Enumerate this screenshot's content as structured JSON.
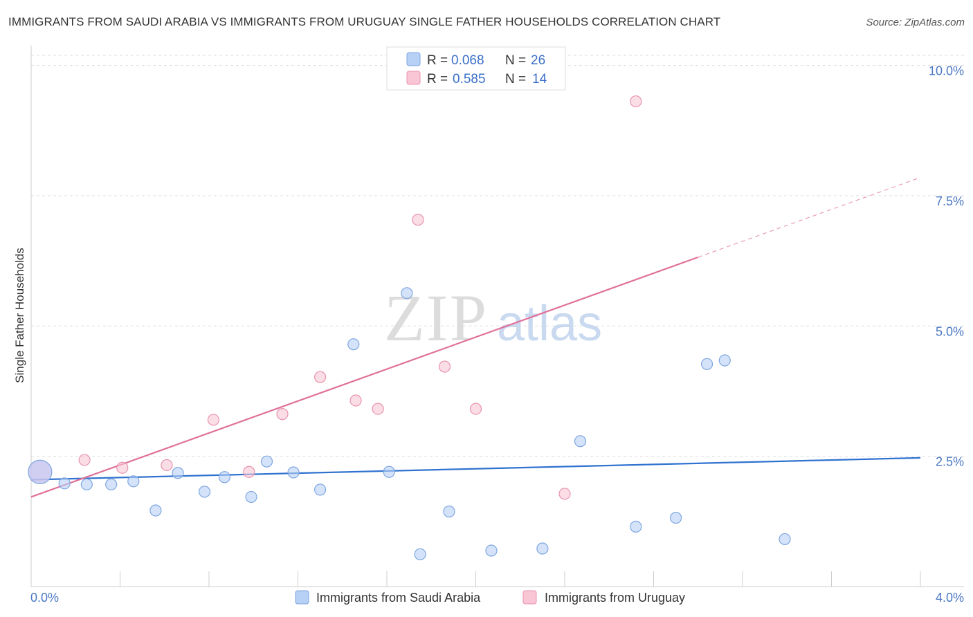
{
  "title": "IMMIGRANTS FROM SAUDI ARABIA VS IMMIGRANTS FROM URUGUAY SINGLE FATHER HOUSEHOLDS CORRELATION CHART",
  "source": "Source: ZipAtlas.com",
  "watermark": {
    "zip": "ZIP",
    "atlas": "atlas"
  },
  "legend_top": {
    "rows": [
      {
        "r_label": "R =",
        "r_value": "0.068",
        "n_label": "N =",
        "n_value": "26",
        "color": "#b7d0f5",
        "stroke": "#7ea6e0"
      },
      {
        "r_label": "R =",
        "r_value": "0.585",
        "n_label": "N =",
        "n_value": "14",
        "color": "#f9c6d6",
        "stroke": "#e893ae"
      }
    ]
  },
  "legend_bottom": [
    {
      "label": "Immigrants from Saudi Arabia",
      "color": "#b7d0f5",
      "stroke": "#7ea6e0"
    },
    {
      "label": "Immigrants from Uruguay",
      "color": "#f9c6d6",
      "stroke": "#e893ae"
    }
  ],
  "chart_data": {
    "type": "scatter",
    "xlabel": "",
    "ylabel": "Single Father Households",
    "xlim": [
      0,
      4
    ],
    "ylim": [
      0,
      10.3
    ],
    "x_tick_labels": [
      {
        "value": 0,
        "label": "0.0%"
      },
      {
        "value": 4,
        "label": "4.0%"
      }
    ],
    "y_tick_labels": [
      {
        "value": 2.5,
        "label": "2.5%"
      },
      {
        "value": 5.0,
        "label": "5.0%"
      },
      {
        "value": 7.5,
        "label": "7.5%"
      },
      {
        "value": 10.0,
        "label": "10.0%"
      }
    ],
    "grid": "horizontal dashed",
    "legend_position": "top-center",
    "series": [
      {
        "name": "Immigrants from Saudi Arabia",
        "color": "#b7d0f5",
        "stroke": "#7ea6e0",
        "line_color": "#2f72d0",
        "x": [
          0.04,
          0.15,
          0.25,
          0.36,
          0.46,
          0.56,
          0.66,
          0.78,
          0.87,
          0.99,
          1.06,
          1.18,
          1.3,
          1.45,
          1.61,
          1.69,
          1.75,
          1.88,
          2.07,
          2.3,
          2.47,
          2.72,
          2.9,
          3.04,
          3.12,
          3.39
        ],
        "y": [
          2.2,
          1.98,
          1.96,
          1.96,
          2.02,
          1.46,
          2.18,
          1.82,
          2.1,
          1.72,
          2.4,
          2.19,
          1.86,
          4.65,
          2.2,
          5.63,
          0.62,
          1.44,
          0.69,
          0.73,
          2.79,
          1.15,
          1.32,
          4.27,
          4.34,
          0.91
        ],
        "trend": {
          "x": [
            0,
            4
          ],
          "y": [
            2.05,
            2.47
          ]
        }
      },
      {
        "name": "Immigrants from Uruguay",
        "color": "#f9c6d6",
        "stroke": "#e893ae",
        "line_color": "#e0719a",
        "x": [
          0.24,
          0.41,
          0.61,
          0.82,
          0.98,
          1.13,
          1.3,
          1.46,
          1.56,
          1.74,
          1.86,
          2.0,
          2.4,
          2.72
        ],
        "y": [
          2.43,
          2.28,
          2.33,
          3.2,
          2.2,
          3.31,
          4.02,
          3.57,
          3.41,
          7.04,
          4.22,
          3.41,
          1.78,
          9.31
        ],
        "trend": {
          "x": [
            0,
            3.0
          ],
          "y": [
            1.72,
            6.32
          ],
          "dashed_to": {
            "x": 4,
            "y": 7.85
          }
        }
      }
    ]
  }
}
